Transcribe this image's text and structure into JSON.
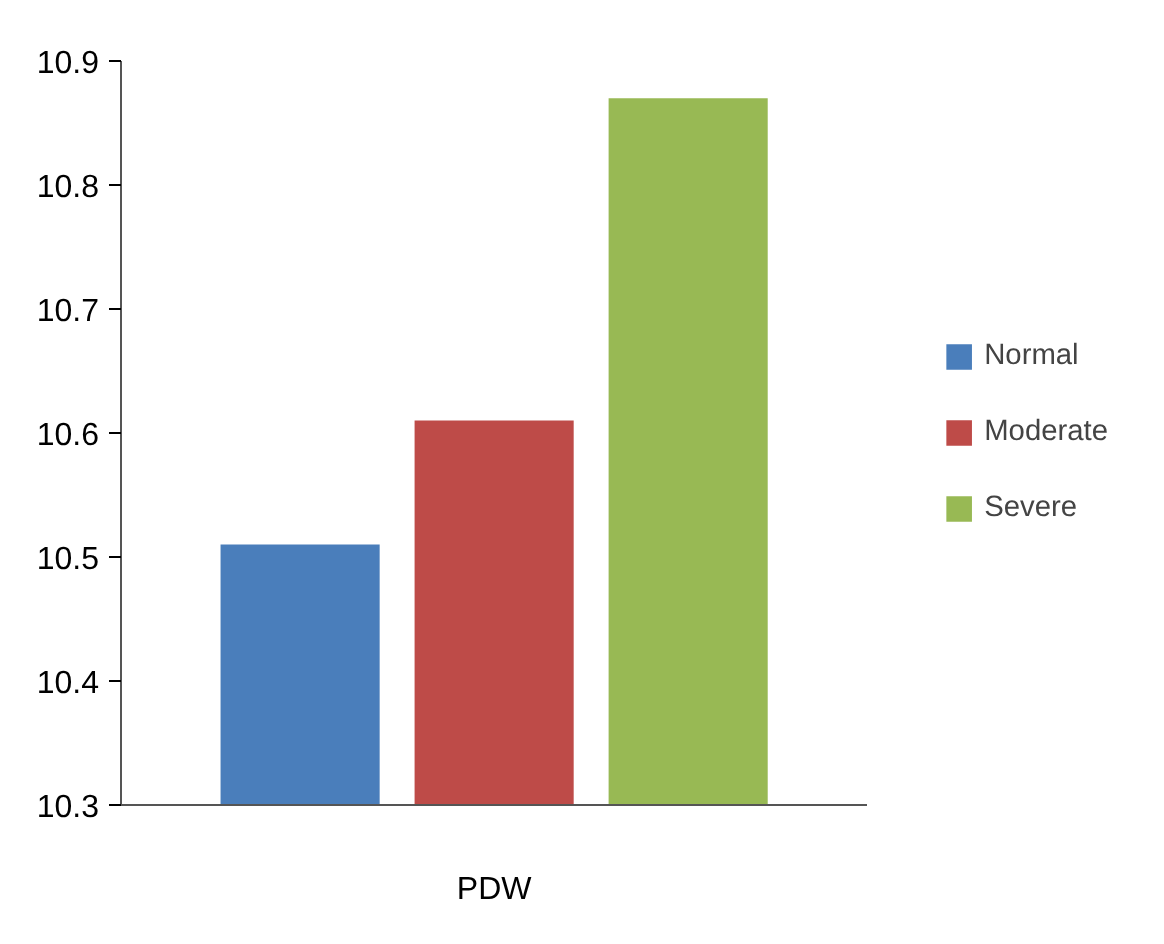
{
  "chart_data": {
    "type": "bar",
    "categories": [
      "PDW"
    ],
    "series": [
      {
        "name": "Normal",
        "color": "#4a7ebb",
        "values": [
          10.51
        ]
      },
      {
        "name": "Moderate",
        "color": "#be4b48",
        "values": [
          10.61
        ]
      },
      {
        "name": "Severe",
        "color": "#98b954",
        "values": [
          10.87
        ]
      }
    ],
    "ylim": [
      10.3,
      10.9
    ],
    "yticks": [
      10.3,
      10.4,
      10.5,
      10.6,
      10.7,
      10.8,
      10.9
    ],
    "grid": false,
    "legend": "right"
  }
}
